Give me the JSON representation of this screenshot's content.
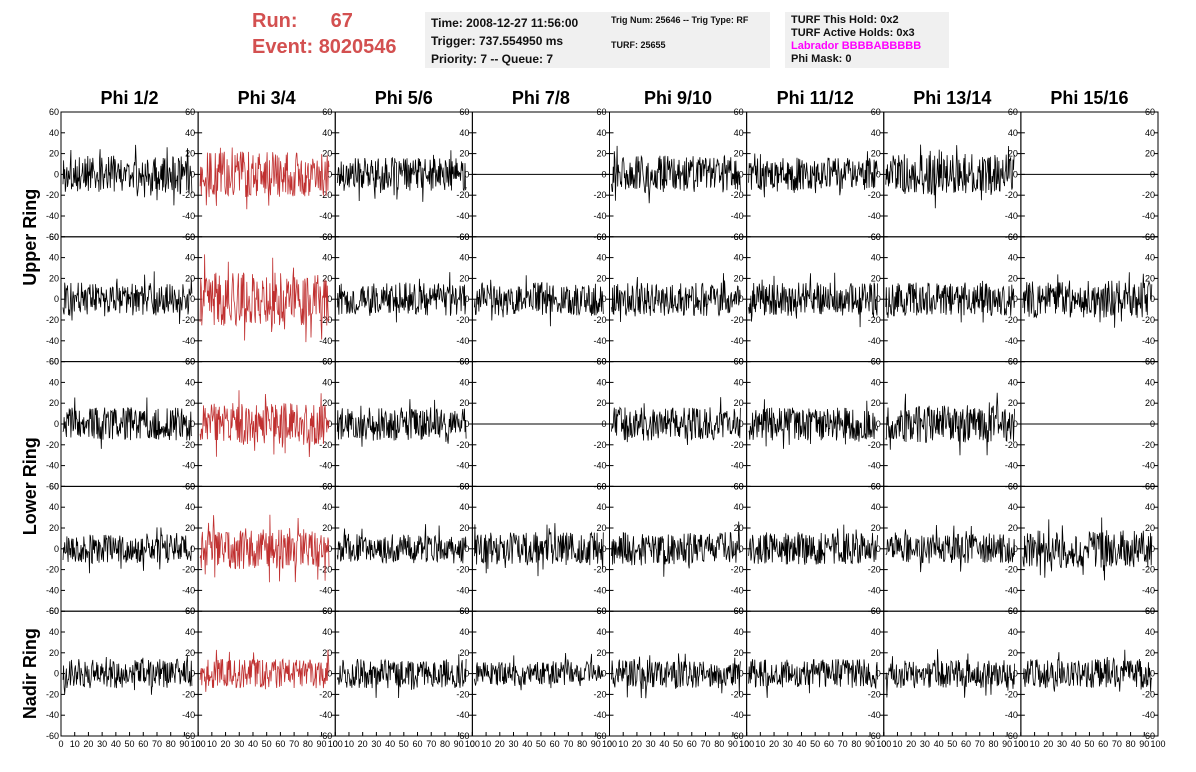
{
  "header": {
    "run_label": "Run:",
    "run_value": "67",
    "event_label": "Event:",
    "event_value": "8020546",
    "time": "Time: 2008-12-27 11:56:00",
    "trigger": "Trigger: 737.554950 ms",
    "priority": "Priority: 7 -- Queue: 7",
    "trig_num": "Trig Num: 25646 -- Trig Type: RF",
    "turf": "TURF: 25655",
    "turf_hold": "TURF This Hold: 0x2",
    "turf_active": "TURF Active Holds: 0x3",
    "labrador": "Labrador BBBBABBBBB",
    "phi_mask": "Phi Mask: 0",
    "labrador_color": "#ff00ff",
    "run_color": "#d35050"
  },
  "columns": [
    "Phi 1/2",
    "Phi 3/4",
    "Phi 5/6",
    "Phi 7/8",
    "Phi 9/10",
    "Phi 11/12",
    "Phi 13/14",
    "Phi 15/16"
  ],
  "rings": [
    {
      "label": "Upper Ring",
      "rows": [
        0,
        1
      ]
    },
    {
      "label": "Lower Ring",
      "rows": [
        2,
        3
      ]
    },
    {
      "label": "Nadir Ring",
      "rows": [
        4
      ]
    }
  ],
  "chart_data": {
    "type": "line",
    "grid": {
      "rows": 5,
      "cols": 8
    },
    "ylim": [
      -60,
      60
    ],
    "xlim": [
      0,
      100
    ],
    "y_ticks": [
      60,
      40,
      20,
      0,
      -20,
      -40,
      -60
    ],
    "y_tick_labels": [
      "60",
      "40",
      "20",
      "0",
      "-20",
      "-40",
      "-60"
    ],
    "x_tick_labels": [
      "0",
      "10",
      "20",
      "30",
      "40",
      "50",
      "60",
      "70",
      "80",
      "90",
      "100"
    ],
    "highlight_color": "#c03030",
    "trace_color": "#000000",
    "panels": [
      {
        "row": 0,
        "col": 0,
        "kind": "noise",
        "amp": 18
      },
      {
        "row": 0,
        "col": 1,
        "kind": "noise",
        "amp": 22,
        "highlight": true
      },
      {
        "row": 0,
        "col": 2,
        "kind": "noise",
        "amp": 16
      },
      {
        "row": 0,
        "col": 3,
        "kind": "flat"
      },
      {
        "row": 0,
        "col": 4,
        "kind": "noise",
        "amp": 18
      },
      {
        "row": 0,
        "col": 5,
        "kind": "noise",
        "amp": 16
      },
      {
        "row": 0,
        "col": 6,
        "kind": "noise",
        "amp": 20
      },
      {
        "row": 0,
        "col": 7,
        "kind": "flat"
      },
      {
        "row": 1,
        "col": 0,
        "kind": "noise",
        "amp": 16
      },
      {
        "row": 1,
        "col": 1,
        "kind": "noise",
        "amp": 26,
        "highlight": true
      },
      {
        "row": 1,
        "col": 2,
        "kind": "noise",
        "amp": 16
      },
      {
        "row": 1,
        "col": 3,
        "kind": "noise",
        "amp": 16
      },
      {
        "row": 1,
        "col": 4,
        "kind": "noise",
        "amp": 16
      },
      {
        "row": 1,
        "col": 5,
        "kind": "noise",
        "amp": 16
      },
      {
        "row": 1,
        "col": 6,
        "kind": "noise",
        "amp": 16
      },
      {
        "row": 1,
        "col": 7,
        "kind": "noise",
        "amp": 18
      },
      {
        "row": 2,
        "col": 0,
        "kind": "noise",
        "amp": 16
      },
      {
        "row": 2,
        "col": 1,
        "kind": "noise",
        "amp": 20,
        "highlight": true
      },
      {
        "row": 2,
        "col": 2,
        "kind": "noise",
        "amp": 16
      },
      {
        "row": 2,
        "col": 3,
        "kind": "flat"
      },
      {
        "row": 2,
        "col": 4,
        "kind": "noise",
        "amp": 16
      },
      {
        "row": 2,
        "col": 5,
        "kind": "noise",
        "amp": 16
      },
      {
        "row": 2,
        "col": 6,
        "kind": "noise",
        "amp": 18
      },
      {
        "row": 2,
        "col": 7,
        "kind": "flat"
      },
      {
        "row": 3,
        "col": 0,
        "kind": "noise",
        "amp": 14
      },
      {
        "row": 3,
        "col": 1,
        "kind": "noise",
        "amp": 20,
        "highlight": true
      },
      {
        "row": 3,
        "col": 2,
        "kind": "noise",
        "amp": 14
      },
      {
        "row": 3,
        "col": 3,
        "kind": "noise",
        "amp": 16
      },
      {
        "row": 3,
        "col": 4,
        "kind": "noise",
        "amp": 16
      },
      {
        "row": 3,
        "col": 5,
        "kind": "noise",
        "amp": 16
      },
      {
        "row": 3,
        "col": 6,
        "kind": "noise",
        "amp": 14
      },
      {
        "row": 3,
        "col": 7,
        "kind": "noise",
        "amp": 18
      },
      {
        "row": 4,
        "col": 0,
        "kind": "noise",
        "amp": 14
      },
      {
        "row": 4,
        "col": 1,
        "kind": "noise",
        "amp": 14,
        "highlight": true
      },
      {
        "row": 4,
        "col": 2,
        "kind": "noise",
        "amp": 14
      },
      {
        "row": 4,
        "col": 3,
        "kind": "noise",
        "amp": 12
      },
      {
        "row": 4,
        "col": 4,
        "kind": "noise",
        "amp": 14
      },
      {
        "row": 4,
        "col": 5,
        "kind": "noise",
        "amp": 14
      },
      {
        "row": 4,
        "col": 6,
        "kind": "noise",
        "amp": 14
      },
      {
        "row": 4,
        "col": 7,
        "kind": "noise",
        "amp": 14
      }
    ]
  }
}
